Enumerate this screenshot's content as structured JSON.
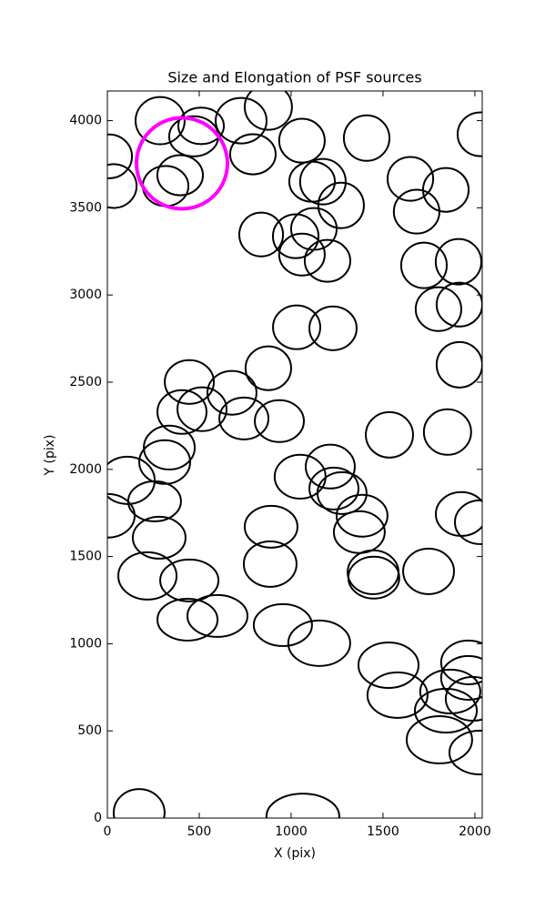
{
  "chart_data": {
    "type": "ellipse",
    "title": "Size and Elongation of PSF sources",
    "xlabel": "X (pix)",
    "ylabel": "Y (pix)",
    "xlim": [
      0,
      2040
    ],
    "ylim": [
      0,
      4170
    ],
    "xticks": [
      0,
      500,
      1000,
      1500,
      2000
    ],
    "yticks": [
      0,
      500,
      1000,
      1500,
      2000,
      2500,
      3000,
      3500,
      4000
    ],
    "series": [
      {
        "color": "#000000",
        "linewidth": 2,
        "x": [
          287,
          510,
          470,
          10,
          35,
          317,
          396,
          728,
          876,
          792,
          1059,
          1411,
          2030,
          1114,
          1173,
          1272,
          1649,
          1683,
          1842,
          837,
          1025,
          1124,
          1059,
          1198,
          1723,
          1911,
          1802,
          1916,
          1916,
          1030,
          1228,
          876,
          446,
          678,
          406,
          515,
          743,
          936,
          337,
          312,
          109,
          0,
          257,
          282,
          218,
          446,
          436,
          599,
          955,
          1153,
          891,
          886,
          1049,
          1213,
          1233,
          1277,
          1386,
          1371,
          1446,
          1450,
          1535,
          1851,
          1748,
          1926,
          2030,
          1530,
          1579,
          1866,
          1842,
          1807,
          2030,
          1965,
          1965,
          1990,
          173,
          1064
        ],
        "y": [
          4000,
          3970,
          3910,
          3795,
          3625,
          3625,
          3687,
          4000,
          4078,
          3807,
          3885,
          3900,
          3922,
          3650,
          3650,
          3514,
          3666,
          3478,
          3603,
          3347,
          3337,
          3379,
          3232,
          3196,
          3170,
          3191,
          2919,
          2945,
          2600,
          2815,
          2809,
          2580,
          2501,
          2439,
          2329,
          2345,
          2292,
          2277,
          2125,
          2042,
          1937,
          1734,
          1817,
          1608,
          1389,
          1363,
          1138,
          1159,
          1107,
          1003,
          1671,
          1457,
          1958,
          2016,
          1890,
          1864,
          1734,
          1640,
          1410,
          1379,
          2198,
          2214,
          1415,
          1744,
          1697,
          877,
          705,
          726,
          616,
          449,
          376,
          893,
          804,
          684,
          31,
          10
        ],
        "widths": [
          267,
          248,
          267,
          248,
          248,
          248,
          248,
          277,
          257,
          248,
          248,
          248,
          248,
          248,
          248,
          248,
          248,
          248,
          248,
          238,
          248,
          248,
          248,
          248,
          248,
          248,
          248,
          248,
          248,
          257,
          257,
          248,
          267,
          267,
          267,
          267,
          267,
          267,
          277,
          277,
          297,
          297,
          287,
          287,
          317,
          317,
          327,
          327,
          317,
          337,
          287,
          287,
          277,
          267,
          267,
          267,
          277,
          277,
          277,
          277,
          257,
          257,
          277,
          277,
          277,
          327,
          327,
          327,
          337,
          356,
          337,
          297,
          297,
          297,
          277,
          396
        ],
        "heights": [
          271,
          209,
          230,
          251,
          251,
          230,
          230,
          261,
          261,
          230,
          251,
          261,
          251,
          230,
          261,
          261,
          251,
          251,
          251,
          251,
          251,
          240,
          240,
          240,
          261,
          261,
          251,
          251,
          261,
          251,
          251,
          251,
          251,
          251,
          251,
          251,
          240,
          240,
          251,
          251,
          271,
          251,
          230,
          240,
          271,
          240,
          240,
          240,
          240,
          261,
          240,
          261,
          251,
          251,
          240,
          240,
          240,
          240,
          251,
          240,
          261,
          261,
          261,
          251,
          251,
          261,
          261,
          251,
          251,
          271,
          251,
          251,
          251,
          251,
          271,
          261
        ]
      },
      {
        "color": "#ff00ff",
        "linewidth": 4,
        "x": [
          406
        ],
        "y": [
          3755
        ],
        "widths": [
          495
        ],
        "heights": [
          522
        ]
      }
    ]
  }
}
